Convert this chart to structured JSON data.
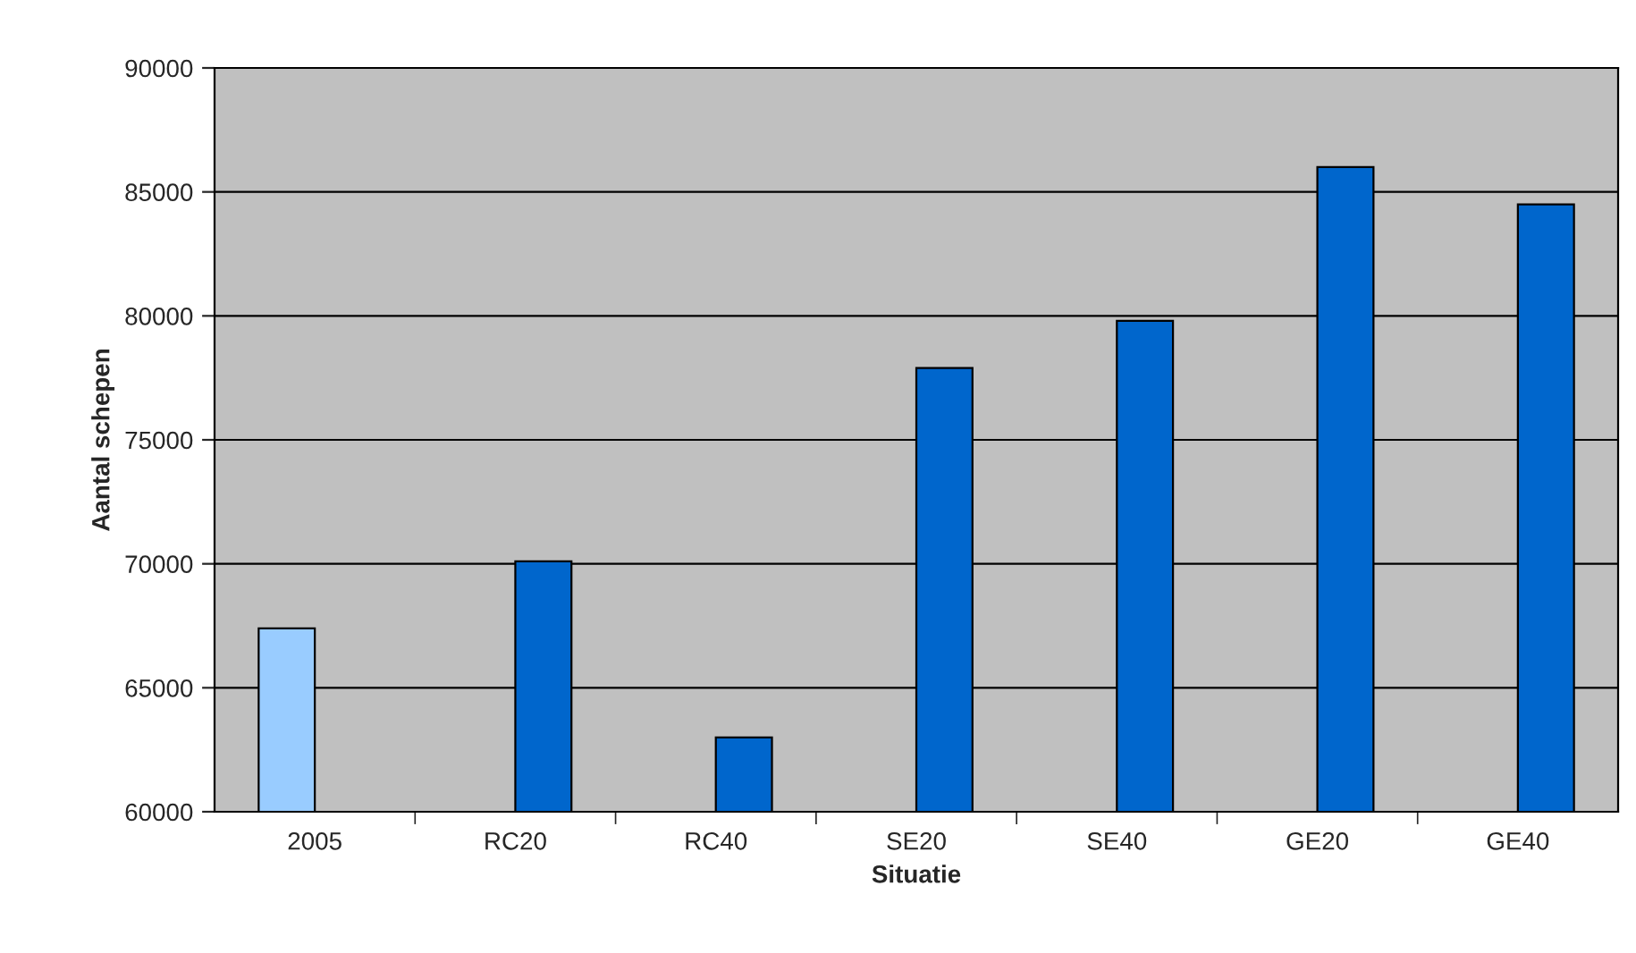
{
  "chart_data": {
    "type": "bar",
    "xlabel": "Situatie",
    "ylabel": "Aantal schepen",
    "categories": [
      "2005",
      "RC20",
      "RC40",
      "SE20",
      "SE40",
      "GE20",
      "GE40"
    ],
    "series": [
      {
        "color": "#99ccff",
        "values": [
          67400,
          null,
          null,
          null,
          null,
          null,
          null
        ]
      },
      {
        "color": "#0066cc",
        "values": [
          null,
          70100,
          63000,
          77900,
          79800,
          86000,
          84500
        ]
      }
    ],
    "ylim": [
      60000,
      90000
    ],
    "yticks": [
      60000,
      65000,
      70000,
      75000,
      80000,
      85000,
      90000
    ],
    "grid": "y",
    "legend": false
  }
}
